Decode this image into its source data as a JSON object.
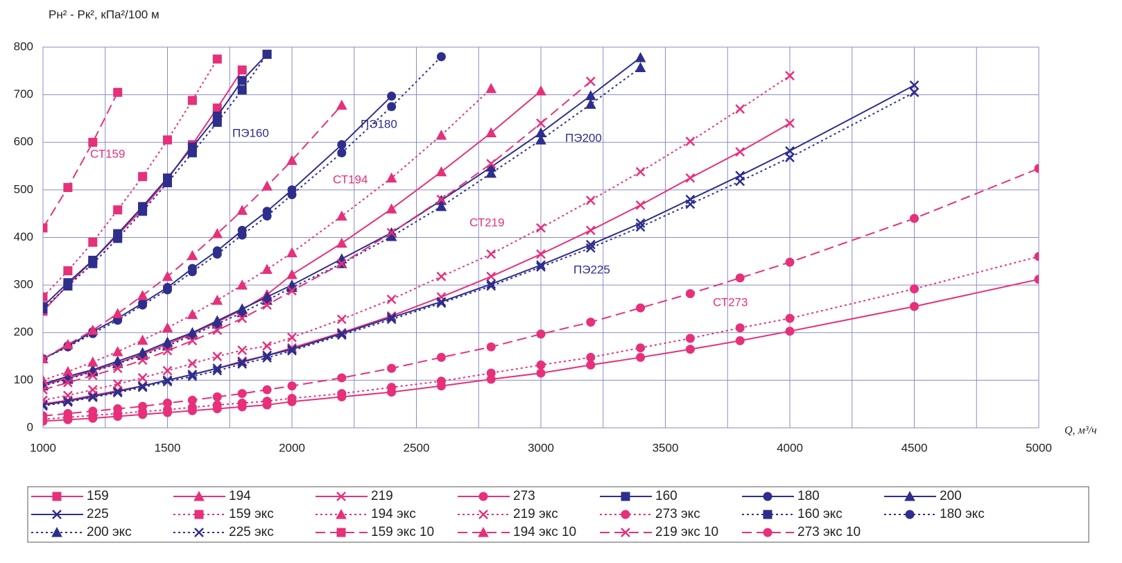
{
  "chart_data": {
    "type": "line",
    "y_label": "Pн² - Pк², кПа²/100 м",
    "x_label": "Q, м³/ч",
    "x": [
      1000,
      1100,
      1200,
      1300,
      1400,
      1500,
      1600,
      1700,
      1800,
      1900,
      2000,
      2200,
      2400,
      2600,
      2800,
      3000,
      3200,
      3400,
      3600,
      3800,
      4000,
      4500,
      5000
    ],
    "xlim": [
      1000,
      5000
    ],
    "xticks": [
      1000,
      1500,
      2000,
      2500,
      3000,
      3500,
      4000,
      4500,
      5000
    ],
    "xgrid_minor": [
      1250,
      1750,
      2250,
      2750,
      3250,
      3750,
      4250,
      4750
    ],
    "ylim": [
      0,
      800
    ],
    "yticks": [
      0,
      100,
      200,
      300,
      400,
      500,
      600,
      700,
      800
    ],
    "grid": true,
    "annotations": [
      {
        "text": "СТ159",
        "color": "#e6307a"
      },
      {
        "text": "ПЭ160",
        "color": "#2e2e8c"
      },
      {
        "text": "ПЭ180",
        "color": "#2e2e8c"
      },
      {
        "text": "СТ194",
        "color": "#e6307a"
      },
      {
        "text": "ПЭ200",
        "color": "#2e2e8c"
      },
      {
        "text": "СТ219",
        "color": "#e6307a"
      },
      {
        "text": "ПЭ225",
        "color": "#2e2e8c"
      },
      {
        "text": "СТ273",
        "color": "#e6307a"
      }
    ],
    "series": [
      {
        "name": "159",
        "color": "#e6307a",
        "dash": "solid",
        "marker": "square",
        "values": [
          245,
          300,
          352,
          405,
          460,
          522,
          595,
          672,
          752,
          null,
          null,
          null,
          null,
          null,
          null,
          null,
          null,
          null,
          null,
          null,
          null,
          null,
          null
        ]
      },
      {
        "name": "194",
        "color": "#e6307a",
        "dash": "solid",
        "marker": "triangle",
        "values": [
          90,
          104,
          120,
          136,
          155,
          176,
          198,
          222,
          248,
          280,
          322,
          388,
          460,
          538,
          620,
          708,
          null,
          null,
          null,
          null,
          null,
          null,
          null
        ]
      },
      {
        "name": "219",
        "color": "#e6307a",
        "dash": "solid",
        "marker": "cross",
        "values": [
          50,
          58,
          68,
          78,
          88,
          100,
          112,
          125,
          140,
          152,
          168,
          200,
          235,
          275,
          318,
          365,
          415,
          468,
          525,
          580,
          640,
          null,
          null
        ]
      },
      {
        "name": "273",
        "color": "#e6307a",
        "dash": "solid",
        "marker": "circle",
        "values": [
          14,
          17,
          20,
          24,
          28,
          32,
          36,
          40,
          44,
          48,
          55,
          65,
          75,
          88,
          102,
          115,
          132,
          148,
          165,
          183,
          203,
          255,
          312
        ]
      },
      {
        "name": "160",
        "color": "#2e2e8c",
        "dash": "solid",
        "marker": "square",
        "values": [
          255,
          305,
          352,
          408,
          465,
          525,
          590,
          655,
          730,
          785,
          null,
          null,
          null,
          null,
          null,
          null,
          null,
          null,
          null,
          null,
          null,
          null,
          null
        ]
      },
      {
        "name": "180",
        "color": "#2e2e8c",
        "dash": "solid",
        "marker": "circle",
        "values": [
          145,
          172,
          202,
          230,
          262,
          295,
          335,
          372,
          415,
          455,
          500,
          595,
          697,
          null,
          null,
          null,
          null,
          null,
          null,
          null,
          null,
          null,
          null
        ]
      },
      {
        "name": "200",
        "color": "#2e2e8c",
        "dash": "solid",
        "marker": "triangle",
        "values": [
          92,
          108,
          122,
          140,
          158,
          180,
          200,
          225,
          250,
          275,
          300,
          355,
          410,
          478,
          548,
          620,
          698,
          778,
          null,
          null,
          null,
          null,
          null
        ]
      },
      {
        "name": "225",
        "color": "#2e2e8c",
        "dash": "solid",
        "marker": "cross",
        "values": [
          48,
          56,
          66,
          76,
          88,
          100,
          112,
          125,
          138,
          152,
          165,
          198,
          232,
          265,
          302,
          342,
          385,
          430,
          480,
          530,
          582,
          720,
          null
        ]
      },
      {
        "name": "159 экс",
        "color": "#e6307a",
        "dash": "dotted",
        "marker": "square",
        "values": [
          275,
          330,
          390,
          458,
          528,
          605,
          688,
          775,
          null,
          null,
          null,
          null,
          null,
          null,
          null,
          null,
          null,
          null,
          null,
          null,
          null,
          null,
          null
        ]
      },
      {
        "name": "194 экс",
        "color": "#e6307a",
        "dash": "dotted",
        "marker": "triangle",
        "values": [
          100,
          118,
          138,
          160,
          184,
          210,
          238,
          268,
          300,
          333,
          368,
          445,
          525,
          615,
          713,
          null,
          null,
          null,
          null,
          null,
          null,
          null,
          null
        ]
      },
      {
        "name": "219 экс",
        "color": "#e6307a",
        "dash": "dotted",
        "marker": "cross",
        "values": [
          58,
          68,
          80,
          92,
          105,
          120,
          135,
          150,
          163,
          172,
          190,
          228,
          270,
          318,
          365,
          420,
          478,
          538,
          602,
          670,
          740,
          null,
          null
        ]
      },
      {
        "name": "273 экс",
        "color": "#e6307a",
        "dash": "dotted",
        "marker": "circle",
        "values": [
          18,
          22,
          26,
          30,
          34,
          38,
          43,
          48,
          52,
          56,
          62,
          72,
          85,
          98,
          115,
          132,
          148,
          168,
          188,
          210,
          230,
          292,
          360
        ]
      },
      {
        "name": "160 экс",
        "color": "#2e2e8c",
        "dash": "dotted",
        "marker": "square",
        "values": [
          250,
          298,
          345,
          398,
          455,
          515,
          578,
          642,
          710,
          785,
          null,
          null,
          null,
          null,
          null,
          null,
          null,
          null,
          null,
          null,
          null,
          null,
          null
        ]
      },
      {
        "name": "180 экс",
        "color": "#2e2e8c",
        "dash": "dotted",
        "marker": "circle",
        "values": [
          145,
          170,
          198,
          226,
          258,
          290,
          328,
          365,
          405,
          445,
          490,
          578,
          675,
          780,
          null,
          null,
          null,
          null,
          null,
          null,
          null,
          null,
          null
        ]
      },
      {
        "name": "200 экс",
        "color": "#2e2e8c",
        "dash": "dotted",
        "marker": "triangle",
        "values": [
          88,
          102,
          118,
          135,
          152,
          172,
          195,
          218,
          242,
          268,
          295,
          345,
          402,
          465,
          535,
          605,
          680,
          757,
          null,
          null,
          null,
          null,
          null
        ]
      },
      {
        "name": "225 экс",
        "color": "#2e2e8c",
        "dash": "dotted",
        "marker": "cross",
        "values": [
          46,
          54,
          64,
          74,
          85,
          97,
          108,
          120,
          134,
          147,
          162,
          195,
          228,
          262,
          298,
          338,
          378,
          422,
          470,
          518,
          568,
          705,
          null
        ]
      },
      {
        "name": "159 экс 10",
        "color": "#e6307a",
        "dash": "dashed",
        "marker": "square",
        "values": [
          420,
          505,
          600,
          705,
          null,
          null,
          null,
          null,
          null,
          null,
          null,
          null,
          null,
          null,
          null,
          null,
          null,
          null,
          null,
          null,
          null,
          null,
          null
        ]
      },
      {
        "name": "194 экс 10",
        "color": "#e6307a",
        "dash": "dashed",
        "marker": "triangle",
        "values": [
          145,
          175,
          205,
          240,
          278,
          318,
          362,
          408,
          457,
          508,
          562,
          678,
          null,
          null,
          null,
          null,
          null,
          null,
          null,
          null,
          null,
          null,
          null
        ]
      },
      {
        "name": "219 экс 10",
        "color": "#e6307a",
        "dash": "dashed",
        "marker": "cross",
        "values": [
          80,
          95,
          110,
          125,
          142,
          162,
          183,
          205,
          230,
          258,
          288,
          345,
          410,
          480,
          555,
          640,
          728,
          null,
          null,
          null,
          null,
          null,
          null
        ]
      },
      {
        "name": "273 экс 10",
        "color": "#e6307a",
        "dash": "dashed",
        "marker": "circle",
        "values": [
          25,
          30,
          35,
          40,
          45,
          52,
          58,
          65,
          72,
          80,
          88,
          105,
          125,
          148,
          170,
          197,
          222,
          252,
          282,
          315,
          348,
          440,
          545
        ]
      }
    ]
  }
}
